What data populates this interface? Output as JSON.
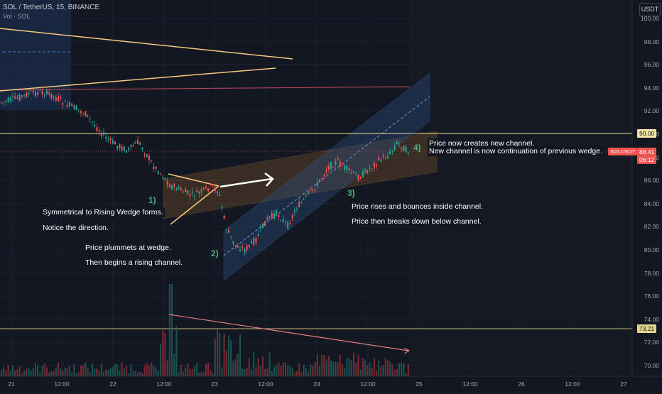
{
  "header": {
    "symbol": "SOL / TetherUS, 15, BINANCE",
    "volume": "Vol · SOL",
    "currency_button": "USDT"
  },
  "price_axis": [
    "100.00",
    "98.00",
    "96.00",
    "94.00",
    "92.00",
    "90.00",
    "88.00",
    "86.00",
    "84.00",
    "82.00",
    "80.00",
    "78.00",
    "76.00",
    "74.00",
    "72.00",
    "70.00"
  ],
  "time_axis": [
    "21",
    "12:00",
    "22",
    "12:00",
    "23",
    "12:00",
    "24",
    "12:00",
    "25",
    "12:00",
    "26",
    "12:00",
    "27"
  ],
  "price_tags": {
    "level_high": "90.00",
    "symbol_tag": "SOLUSDT",
    "last_price": "88.41",
    "countdown": "06:12",
    "level_low": "73.21"
  },
  "annotations": {
    "step1": "1)",
    "step2": "2)",
    "step3": "3)",
    "step4": "4)",
    "note1a": "Symmetrical to Rising Wedge forms.",
    "note1b": "Notice the direction.",
    "note2a": "Price plummets at wedge.",
    "note2b": "Then begins a rising channel.",
    "note3a": "Price rises and bounces inside channel.",
    "note3b": "Price then breaks down below channel.",
    "note4a": "Price now creates new channel.",
    "note4b": "New channel is now continuation of previous wedge."
  },
  "colors": {
    "background": "#131722",
    "up": "#26a69a",
    "down": "#ef5350",
    "wedge": "#f5c97a",
    "channel_blue": "#3a6aa8",
    "channel_orange": "#8b5a2b",
    "level_line": "#e8d89a",
    "resistance": "#c2455a"
  }
}
